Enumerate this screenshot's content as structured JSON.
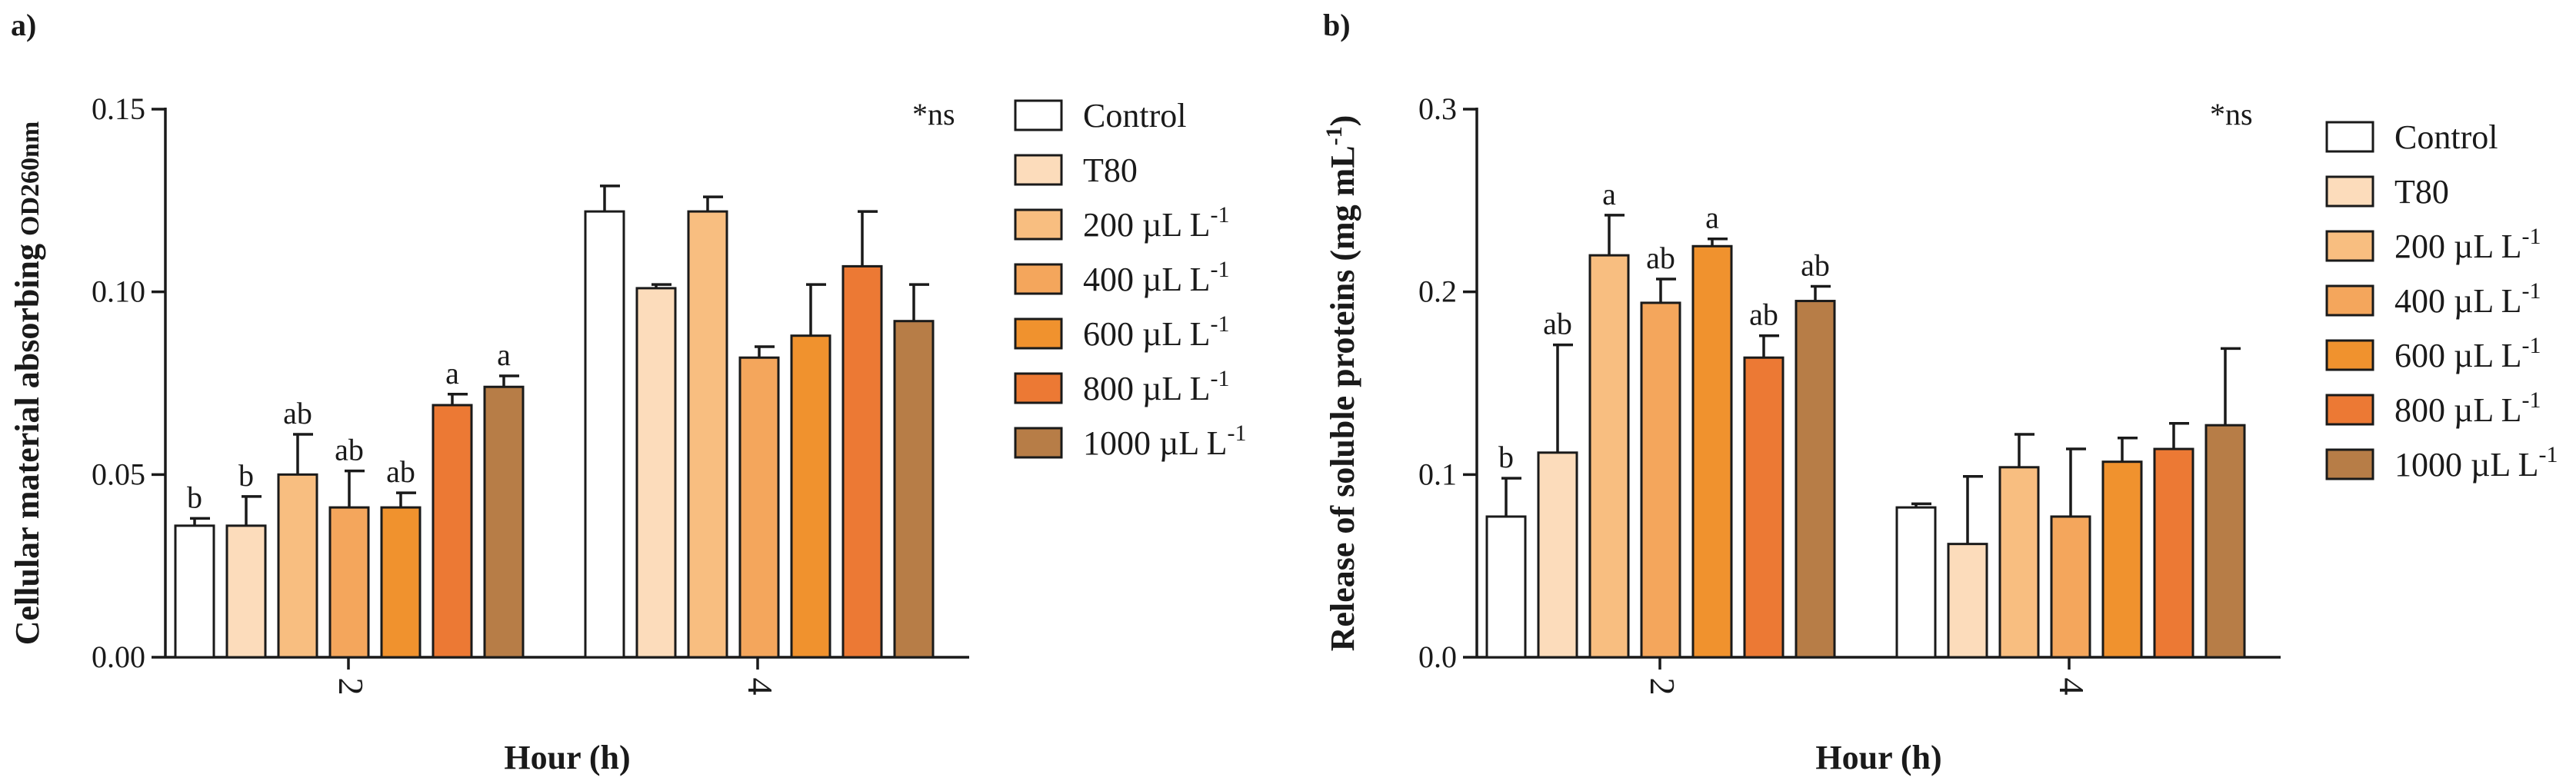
{
  "chart_data": [
    {
      "type": "bar",
      "panel_label": "a)",
      "xlabel": "Hour (h)",
      "ylabel": "Cellular material absorbing",
      "ylabel_sub": "OD260nm",
      "ylim": [
        0,
        0.15
      ],
      "yticks": [
        0.0,
        0.05,
        0.1,
        0.15
      ],
      "ytick_labels": [
        "0.00",
        "0.05",
        "0.10",
        "0.15"
      ],
      "categories": [
        "2",
        "4"
      ],
      "annotation": "*ns",
      "legend_position": "right",
      "series": [
        {
          "name": "Control",
          "color": "#ffffff",
          "values": [
            0.036,
            0.122
          ],
          "errors": [
            0.002,
            0.007
          ],
          "labels": [
            "b",
            ""
          ]
        },
        {
          "name": "T80",
          "color": "#fcdcbb",
          "values": [
            0.036,
            0.101
          ],
          "errors": [
            0.008,
            0.001
          ],
          "labels": [
            "b",
            ""
          ]
        },
        {
          "name": "200 µL L",
          "color": "#f8be80",
          "values": [
            0.05,
            0.122
          ],
          "errors": [
            0.011,
            0.004
          ],
          "labels": [
            "ab",
            ""
          ]
        },
        {
          "name": "400 µL L",
          "color": "#f4a65c",
          "values": [
            0.041,
            0.082
          ],
          "errors": [
            0.01,
            0.003
          ],
          "labels": [
            "ab",
            ""
          ]
        },
        {
          "name": "600  µL L",
          "color": "#f0922e",
          "values": [
            0.041,
            0.088
          ],
          "errors": [
            0.004,
            0.014
          ],
          "labels": [
            "ab",
            ""
          ]
        },
        {
          "name": "800  µL L",
          "color": "#ec7934",
          "values": [
            0.069,
            0.107
          ],
          "errors": [
            0.003,
            0.015
          ],
          "labels": [
            "a",
            ""
          ]
        },
        {
          "name": "1000  µL L",
          "color": "#b77d47",
          "values": [
            0.074,
            0.092
          ],
          "errors": [
            0.003,
            0.01
          ],
          "labels": [
            "a",
            ""
          ]
        }
      ]
    },
    {
      "type": "bar",
      "panel_label": "b)",
      "xlabel": "Hour (h)",
      "ylabel": "Release of soluble proteins (mg mL",
      "ylabel_sup": "-1",
      "ylabel_close": ")",
      "ylim": [
        0,
        0.3
      ],
      "yticks": [
        0.0,
        0.1,
        0.2,
        0.3
      ],
      "ytick_labels": [
        "0.0",
        "0.1",
        "0.2",
        "0.3"
      ],
      "categories": [
        "2",
        "4"
      ],
      "annotation": "*ns",
      "legend_position": "right",
      "series": [
        {
          "name": "Control",
          "color": "#ffffff",
          "values": [
            0.077,
            0.082
          ],
          "errors": [
            0.021,
            0.002
          ],
          "labels": [
            "b",
            ""
          ]
        },
        {
          "name": "T80",
          "color": "#fcdcbb",
          "values": [
            0.112,
            0.062
          ],
          "errors": [
            0.059,
            0.037
          ],
          "labels": [
            "ab",
            ""
          ]
        },
        {
          "name": "200 µL L",
          "color": "#f8be80",
          "values": [
            0.22,
            0.104
          ],
          "errors": [
            0.022,
            0.018
          ],
          "labels": [
            "a",
            ""
          ]
        },
        {
          "name": "400 µL L",
          "color": "#f4a65c",
          "values": [
            0.194,
            0.077
          ],
          "errors": [
            0.013,
            0.037
          ],
          "labels": [
            "ab",
            ""
          ]
        },
        {
          "name": "600  µL L",
          "color": "#f0922e",
          "values": [
            0.225,
            0.107
          ],
          "errors": [
            0.004,
            0.013
          ],
          "labels": [
            "a",
            ""
          ]
        },
        {
          "name": "800  µL L",
          "color": "#ec7934",
          "values": [
            0.164,
            0.114
          ],
          "errors": [
            0.012,
            0.014
          ],
          "labels": [
            "ab",
            ""
          ]
        },
        {
          "name": "1000 µL L",
          "color": "#b77d47",
          "values": [
            0.195,
            0.127
          ],
          "errors": [
            0.008,
            0.042
          ],
          "labels": [
            "ab",
            ""
          ]
        }
      ]
    }
  ],
  "legend_unit_sup": "-1"
}
